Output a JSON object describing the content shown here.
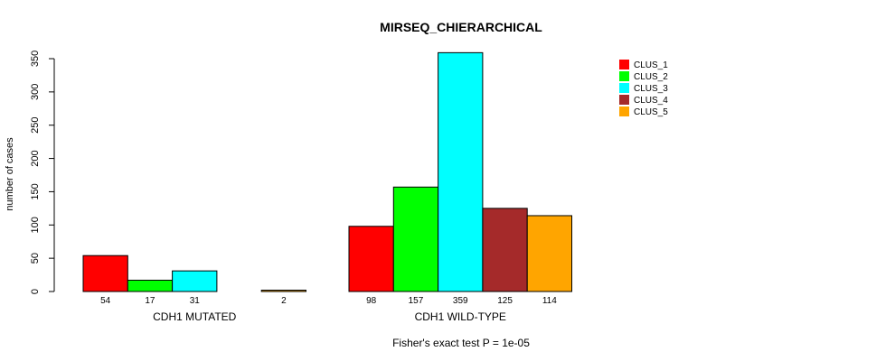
{
  "chart_data": {
    "type": "bar",
    "title": "MIRSEQ_CHIERARCHICAL",
    "ylabel": "number of cases",
    "ylim": [
      0,
      350
    ],
    "yticks": [
      0,
      50,
      100,
      150,
      200,
      250,
      300,
      350
    ],
    "groups": [
      {
        "label": "CDH1 MUTATED",
        "values": [
          54,
          17,
          31,
          0,
          2
        ],
        "value_labels": [
          "54",
          "17",
          "31",
          "",
          "2"
        ]
      },
      {
        "label": "CDH1 WILD-TYPE",
        "values": [
          98,
          157,
          359,
          125,
          114
        ],
        "value_labels": [
          "98",
          "157",
          "359",
          "125",
          "114"
        ]
      }
    ],
    "series": [
      {
        "name": "CLUS_1",
        "color": "#ff0000"
      },
      {
        "name": "CLUS_2",
        "color": "#00ff00"
      },
      {
        "name": "CLUS_3",
        "color": "#00ffff"
      },
      {
        "name": "CLUS_4",
        "color": "#a52a2a"
      },
      {
        "name": "CLUS_5",
        "color": "#ffa500"
      }
    ],
    "legend_position": "top-right",
    "footnote": "Fisher's exact test P = 1e-05"
  }
}
